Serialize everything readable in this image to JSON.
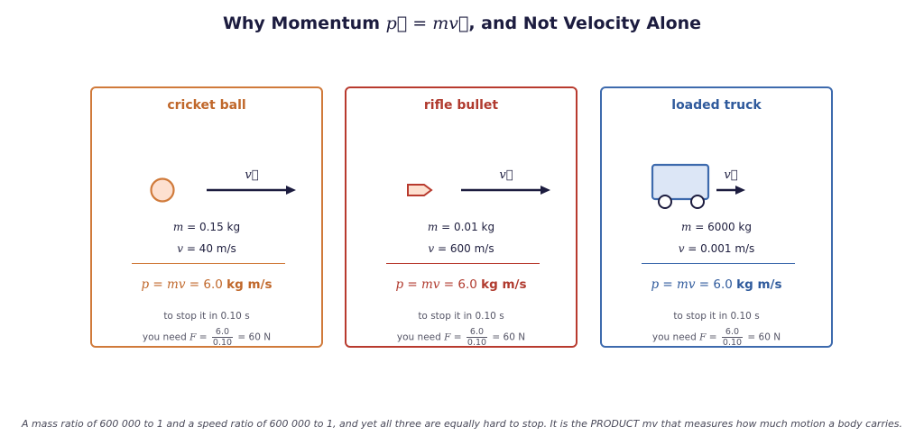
{
  "title": {
    "prefix": "Why Momentum ",
    "formula": "p⃗ = mv⃗",
    "suffix": ", and Not Velocity Alone"
  },
  "colors": {
    "ball": "#d07a3a",
    "bullet": "#b83a2e",
    "truck": "#3d6aad",
    "arrow": "#1c1c3f"
  },
  "cards": [
    {
      "name": "cricket ball",
      "icon": "ball-icon",
      "vlabel": "v⃗",
      "mass_var": "m",
      "mass_text": " = 0.15 kg",
      "vel_var": "v",
      "vel_text": " = 40 m/s",
      "p_formula": "p = mv = ",
      "p_value": "6.0 ",
      "p_unit": "kg m/s",
      "note1": "to stop it in 0.10 s",
      "note2_prefix": "you need ",
      "note2_F": "F",
      "note2_eq": " = ",
      "frac_num": "6.0",
      "frac_den": "0.10",
      "note2_result": " = 60 N"
    },
    {
      "name": "rifle bullet",
      "icon": "bullet-icon",
      "vlabel": "v⃗",
      "mass_var": "m",
      "mass_text": " = 0.01 kg",
      "vel_var": "v",
      "vel_text": " = 600 m/s",
      "p_formula": "p = mv = ",
      "p_value": "6.0 ",
      "p_unit": "kg m/s",
      "note1": "to stop it in 0.10 s",
      "note2_prefix": "you need ",
      "note2_F": "F",
      "note2_eq": " = ",
      "frac_num": "6.0",
      "frac_den": "0.10",
      "note2_result": " = 60 N"
    },
    {
      "name": "loaded truck",
      "icon": "truck-icon",
      "vlabel": "v⃗",
      "mass_var": "m",
      "mass_text": " = 6000 kg",
      "vel_var": "v",
      "vel_text": " = 0.001 m/s",
      "p_formula": "p = mv = ",
      "p_value": "6.0 ",
      "p_unit": "kg m/s",
      "note1": "to stop it in 0.10 s",
      "note2_prefix": "you need ",
      "note2_F": "F",
      "note2_eq": " = ",
      "frac_num": "6.0",
      "frac_den": "0.10",
      "note2_result": " = 60 N"
    }
  ],
  "footnote": "A mass ratio of 600 000 to 1 and a speed ratio of 600 000 to 1, and yet all three are equally hard to stop. It is the PRODUCT mv that measures how much motion a body carries."
}
